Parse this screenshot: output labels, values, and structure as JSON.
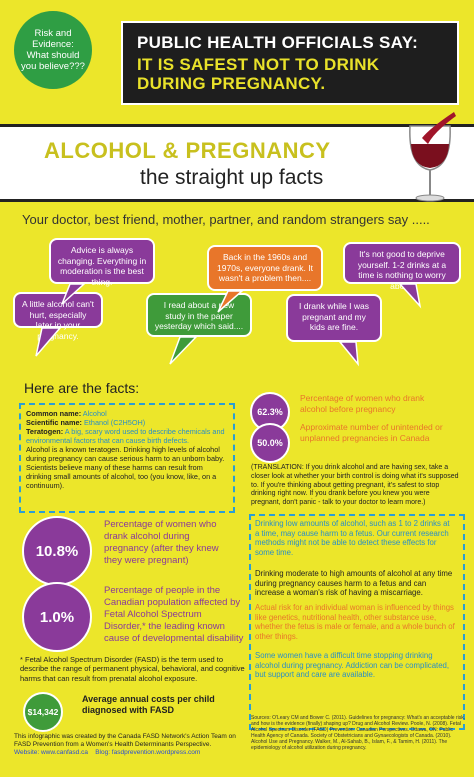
{
  "header": {
    "circle_text": "Risk and Evidence: What should you believe???",
    "line1": "PUBLIC HEALTH OFFICIALS SAY:",
    "line2": "IT IS SAFEST NOT TO DRINK DURING PREGNANCY."
  },
  "title": {
    "main": "ALCOHOL & PREGNANCY",
    "sub": "the straight up facts"
  },
  "say_line": "Your doctor, best friend, mother, partner, and random strangers say .....",
  "bubbles": [
    "Advice is always changing. Everything in moderation is the best thing.",
    "A little alcohol can't hurt, especially later in your pregnancy.",
    "I read about a new study in the paper yesterday which said....",
    "Back in the 1960s and 1970s, everyone drank. It wasn't a problem then....",
    "It's not good to deprive yourself. 1-2 drinks at a time is nothing to worry about.",
    "I drank while I was pregnant and my kids are fine."
  ],
  "facts": {
    "title": "Here are the facts:",
    "common_name_label": "Common name:",
    "common_name": "Alcohol",
    "scientific_label": "Scientific name:",
    "scientific": "Ethanol (C2H5OH)",
    "teratogen_label": "Teratogen:",
    "teratogen": "A big, scary word used to describe chemicals and environmental factors that can cause birth defects.",
    "body": "Alcohol is a known teratogen. Drinking high levels of alcohol during pregnancy can cause serious harm to an unborn baby. Scientists believe many of these harms can result from drinking small amounts of alcohol, too (you know, like, on a continuum)."
  },
  "stats": [
    {
      "value": "62.3%",
      "text": "Percentage of women who drank alcohol before pregnancy"
    },
    {
      "value": "50.0%",
      "text": "Approximate number of unintended or unplanned pregnancies in Canada"
    },
    {
      "value": "10.8%",
      "text": "Percentage of women who drank alcohol during pregnancy (after they knew they were pregnant)"
    },
    {
      "value": "1.0%",
      "text": "Percentage of people in the Canadian population affected by Fetal Alcohol Spectrum Disorder,* the leading known cause of developmental disability"
    }
  ],
  "translation": "(TRANSLATION: If you drink alcohol and are having sex, take a closer look at whether your birth control is doing what it's supposed to. If you're thinking about getting pregnant, it's safest to stop drinking right now. If you drank before you knew you were pregnant, don't panic - talk to your doctor to learn more.)",
  "right_facts": [
    "Drinking low amounts of alcohol, such as 1 to 2 drinks at a time, may cause harm to a fetus. Our current research methods might not be able to detect these effects for some time.",
    "Drinking moderate to high amounts of alcohol at any time during pregnancy causes harm to a fetus and can increase a woman's risk of having a miscarriage.",
    "Actual risk for an individual woman is influenced by things like genetics, nutritional health, other substance use, whether the fetus is male or female, and a whole bunch of other things.",
    "Some women have a difficult time stopping drinking alcohol during pregnancy. Addiction can be complicated, but support and care are available."
  ],
  "fasd": "* Fetal Alcohol Spectrum Disorder (FASD) is the term used to describe the range of permanent physical, behavioral, and cognitive harms that can result from prenatal alcohol exposure.",
  "money": {
    "value": "$14,342",
    "text": "Average annual costs per child diagnosed with FASD"
  },
  "footer": {
    "credit": "This infographic was created by the Canada FASD Network's Action Team on FASD Prevention from a Women's Health Determinants Perspective.",
    "website": "Website: www.canfasd.ca",
    "blog": "Blog: fasdprevention.wordpress.com"
  },
  "sources": "Sources: O'Leary CM and Bower C. (2011). Guidelines for pregnancy: What's an acceptable risk, and how is the evidence (finally) shaping up? Drug and Alcohol Review. Poole, N. (2008). Fetal Alcohol Spectrum Disorder (FASD) Prevention: Canadian Perspectives. Ottawa, ON: Public Health Agency of Canada. Society of Obstetricians and Gynaecologists of Canada. (2010). Alcohol Use and Pregnancy. Walker, M., Al-Sahab, B., Islam, F., & Tamim, H. (2011). The epidemiology of alcohol utilization during pregnancy.",
  "colors": {
    "background": "#ece62a",
    "purple": "#8a3a9a",
    "green": "#3f9b3a",
    "orange": "#e8762a",
    "blue": "#2a8fc6"
  }
}
